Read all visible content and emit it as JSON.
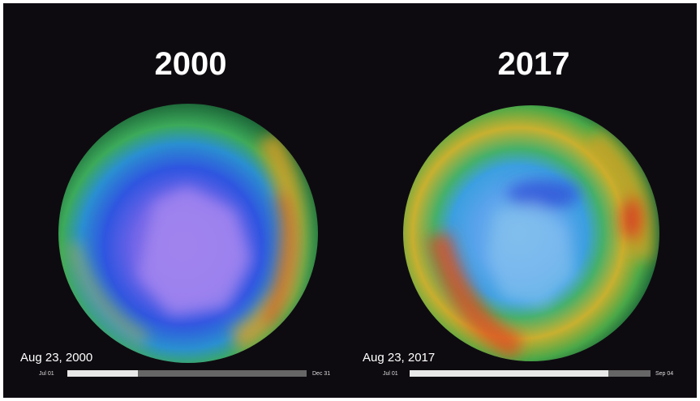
{
  "panels": [
    {
      "year": "2000",
      "date": "Aug 23, 2000",
      "start": "Jul 01",
      "end": "Dec 31"
    },
    {
      "year": "2017",
      "date": "Aug 23, 2017",
      "start": "Jul 01",
      "end": "Sep 04"
    }
  ]
}
